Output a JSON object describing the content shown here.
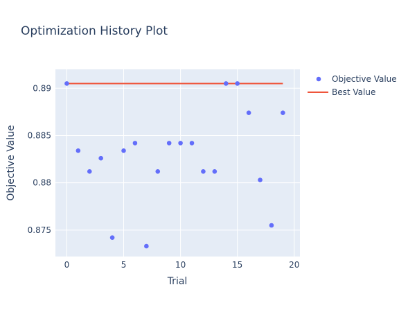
{
  "chart_data": {
    "type": "scatter",
    "title": "Optimization History Plot",
    "xlabel": "Trial",
    "ylabel": "Objective Value",
    "xlim": [
      -1,
      20.5
    ],
    "ylim": [
      0.8722,
      0.892
    ],
    "xticks": [
      0,
      5,
      10,
      15,
      20
    ],
    "xtick_labels": [
      "0",
      "5",
      "10",
      "15",
      "20"
    ],
    "yticks": [
      0.875,
      0.88,
      0.885,
      0.89
    ],
    "ytick_labels": [
      "0.875",
      "0.88",
      "0.885",
      "0.89"
    ],
    "grid": true,
    "legend_position": "top-right",
    "colors": {
      "plot_bg": "#e5ecf6",
      "grid": "#ffffff",
      "objective": "#636efa",
      "best": "#ef553b",
      "text": "#2a3f5f"
    },
    "series": [
      {
        "name": "Objective Value",
        "kind": "markers",
        "x": [
          0,
          1,
          2,
          3,
          4,
          5,
          6,
          7,
          8,
          9,
          10,
          11,
          12,
          13,
          14,
          15,
          16,
          17,
          18,
          19
        ],
        "y": [
          0.8905,
          0.8834,
          0.8812,
          0.8826,
          0.8742,
          0.8834,
          0.8842,
          0.8733,
          0.8812,
          0.8842,
          0.8842,
          0.8842,
          0.8812,
          0.8812,
          0.8905,
          0.8905,
          0.8874,
          0.8803,
          0.8755,
          0.8874
        ]
      },
      {
        "name": "Best Value",
        "kind": "line",
        "x": [
          0,
          19
        ],
        "y": [
          0.8905,
          0.8905
        ]
      }
    ]
  }
}
